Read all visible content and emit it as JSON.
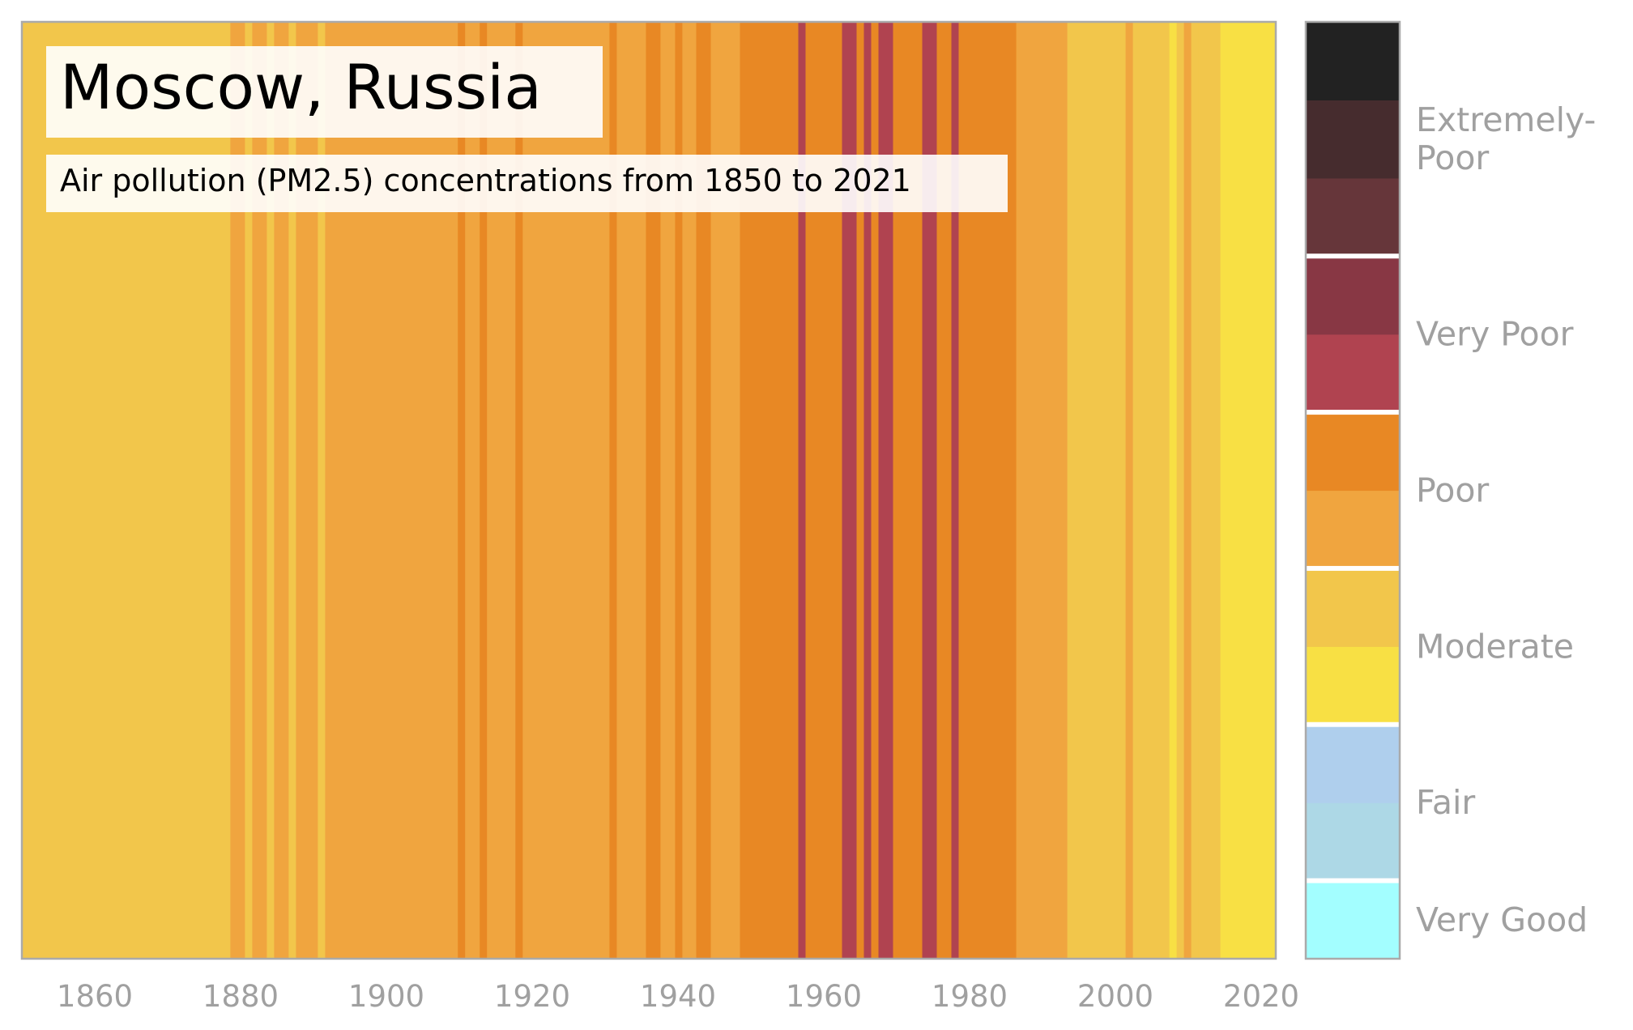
{
  "chart_data": {
    "type": "heatmap",
    "title": "Moscow, Russia",
    "subtitle": "Air pollution (PM2.5) concentrations from 1850 to 2021",
    "xlim": [
      1850,
      2022
    ],
    "x_ticks": [
      1860,
      1880,
      1900,
      1920,
      1940,
      1960,
      1980,
      2000,
      2020
    ],
    "colors": {
      "very_good": "#a3feff",
      "fair_low": "#add8e6",
      "fair_high": "#afcfed",
      "moderate_low": "#f8e044",
      "moderate_high": "#f2c64b",
      "poor_low": "#f0a53f",
      "poor_high": "#e88824",
      "very_poor_low": "#b04350",
      "very_poor_high": "#883744",
      "extremely_poor_1": "#66363a",
      "extremely_poor_2": "#462c2e",
      "extremely_poor_3": "#222222",
      "frame": "#aaaaaa",
      "label": "#a0a0a0"
    },
    "stripes": [
      {
        "from": 1850,
        "to": 1878.6,
        "level": "moderate_high"
      },
      {
        "from": 1878.6,
        "to": 1880.6,
        "level": "poor_low"
      },
      {
        "from": 1880.6,
        "to": 1881.6,
        "level": "moderate_high"
      },
      {
        "from": 1881.6,
        "to": 1883.6,
        "level": "poor_low"
      },
      {
        "from": 1883.6,
        "to": 1884.6,
        "level": "moderate_high"
      },
      {
        "from": 1884.6,
        "to": 1886.6,
        "level": "poor_low"
      },
      {
        "from": 1886.6,
        "to": 1887.6,
        "level": "moderate_high"
      },
      {
        "from": 1887.6,
        "to": 1890.6,
        "level": "poor_low"
      },
      {
        "from": 1890.6,
        "to": 1891.6,
        "level": "moderate_high"
      },
      {
        "from": 1891.6,
        "to": 1909.8,
        "level": "poor_low"
      },
      {
        "from": 1909.8,
        "to": 1910.8,
        "level": "poor_high"
      },
      {
        "from": 1910.8,
        "to": 1912.8,
        "level": "poor_low"
      },
      {
        "from": 1912.8,
        "to": 1913.8,
        "level": "poor_high"
      },
      {
        "from": 1913.8,
        "to": 1917.7,
        "level": "poor_low"
      },
      {
        "from": 1917.7,
        "to": 1918.7,
        "level": "poor_high"
      },
      {
        "from": 1918.7,
        "to": 1930.6,
        "level": "poor_low"
      },
      {
        "from": 1930.6,
        "to": 1931.6,
        "level": "poor_high"
      },
      {
        "from": 1931.6,
        "to": 1935.6,
        "level": "poor_low"
      },
      {
        "from": 1935.6,
        "to": 1937.6,
        "level": "poor_high"
      },
      {
        "from": 1937.6,
        "to": 1939.6,
        "level": "poor_low"
      },
      {
        "from": 1939.6,
        "to": 1940.6,
        "level": "poor_high"
      },
      {
        "from": 1940.6,
        "to": 1942.5,
        "level": "poor_low"
      },
      {
        "from": 1942.5,
        "to": 1944.5,
        "level": "poor_high"
      },
      {
        "from": 1944.5,
        "to": 1948.5,
        "level": "poor_low"
      },
      {
        "from": 1948.5,
        "to": 1956.5,
        "level": "poor_high"
      },
      {
        "from": 1956.5,
        "to": 1957.5,
        "level": "very_poor_low"
      },
      {
        "from": 1957.5,
        "to": 1962.5,
        "level": "poor_high"
      },
      {
        "from": 1962.5,
        "to": 1964.5,
        "level": "very_poor_low"
      },
      {
        "from": 1964.5,
        "to": 1965.5,
        "level": "poor_high"
      },
      {
        "from": 1965.5,
        "to": 1966.5,
        "level": "very_poor_low"
      },
      {
        "from": 1966.5,
        "to": 1967.5,
        "level": "poor_high"
      },
      {
        "from": 1967.5,
        "to": 1969.5,
        "level": "very_poor_low"
      },
      {
        "from": 1969.5,
        "to": 1973.5,
        "level": "poor_high"
      },
      {
        "from": 1973.5,
        "to": 1975.5,
        "level": "very_poor_low"
      },
      {
        "from": 1975.5,
        "to": 1977.5,
        "level": "poor_high"
      },
      {
        "from": 1977.5,
        "to": 1978.5,
        "level": "very_poor_low"
      },
      {
        "from": 1978.5,
        "to": 1986.4,
        "level": "poor_high"
      },
      {
        "from": 1986.4,
        "to": 1993.4,
        "level": "poor_low"
      },
      {
        "from": 1993.4,
        "to": 2001.4,
        "level": "moderate_high"
      },
      {
        "from": 2001.4,
        "to": 2002.4,
        "level": "poor_low"
      },
      {
        "from": 2002.4,
        "to": 2007.4,
        "level": "moderate_high"
      },
      {
        "from": 2007.4,
        "to": 2008.4,
        "level": "moderate_low"
      },
      {
        "from": 2008.4,
        "to": 2009.4,
        "level": "moderate_high"
      },
      {
        "from": 2009.4,
        "to": 2010.4,
        "level": "poor_low"
      },
      {
        "from": 2010.4,
        "to": 2011.4,
        "level": "moderate_high"
      },
      {
        "from": 2011.4,
        "to": 2014.4,
        "level": "moderate_high"
      },
      {
        "from": 2014.4,
        "to": 2022,
        "level": "moderate_low"
      }
    ],
    "legend": {
      "segments": [
        "very_good",
        "fair_low",
        "fair_high",
        "moderate_low",
        "moderate_high",
        "poor_low",
        "poor_high",
        "very_poor_low",
        "very_poor_high",
        "extremely_poor_1",
        "extremely_poor_2",
        "extremely_poor_3"
      ],
      "categories": [
        {
          "label": "Very Good",
          "segments": 1
        },
        {
          "label": "Fair",
          "segments": 2
        },
        {
          "label": "Moderate",
          "segments": 2
        },
        {
          "label": "Poor",
          "segments": 2
        },
        {
          "label": "Very Poor",
          "segments": 2
        },
        {
          "label": "Extremely-\nPoor",
          "segments": 3
        }
      ]
    }
  }
}
